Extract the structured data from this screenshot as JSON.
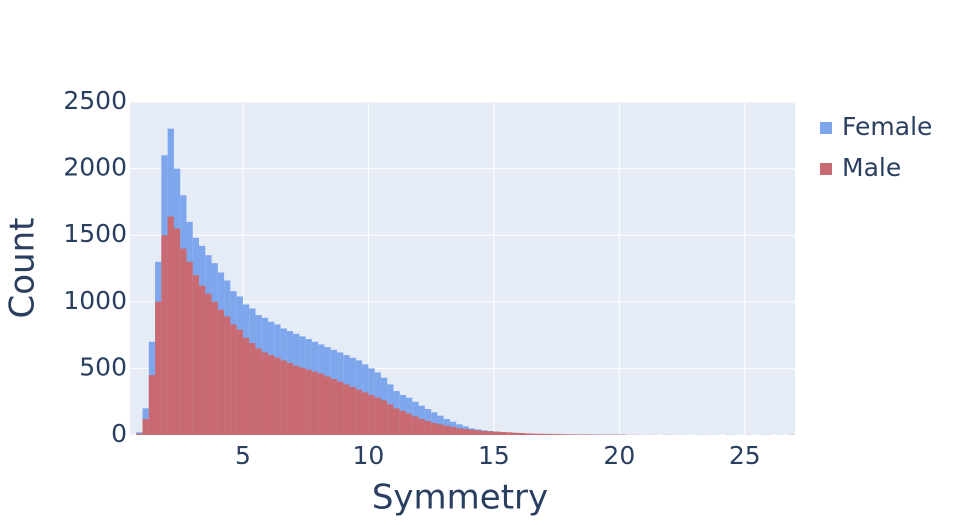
{
  "chart_data": {
    "type": "histogram",
    "barmode": "overlay",
    "xlabel": "Symmetry",
    "ylabel": "Count",
    "bins": [
      0.5,
      0.75,
      1,
      1.25,
      1.5,
      1.75,
      2,
      2.25,
      2.5,
      2.75,
      3,
      3.25,
      3.5,
      3.75,
      4,
      4.25,
      4.5,
      4.75,
      5,
      5.25,
      5.5,
      5.75,
      6,
      6.25,
      6.5,
      6.75,
      7,
      7.25,
      7.5,
      7.75,
      8,
      8.25,
      8.5,
      8.75,
      9,
      9.25,
      9.5,
      9.75,
      10,
      10.25,
      10.5,
      10.75,
      11,
      11.25,
      11.5,
      11.75,
      12,
      12.25,
      12.5,
      12.75,
      13,
      13.25,
      13.5,
      13.75,
      14,
      14.25,
      14.5,
      14.75,
      15,
      15.25,
      15.5,
      15.75,
      16,
      16.25,
      16.5,
      16.75,
      17,
      17.25,
      17.5,
      17.75,
      18,
      18.25,
      18.5,
      18.75,
      19,
      19.25,
      19.5,
      19.75,
      20,
      20.25,
      20.5,
      20.75,
      21,
      21.25,
      21.5,
      21.75,
      22,
      22.25,
      22.5,
      22.75,
      23,
      23.25,
      23.5,
      23.75,
      24,
      24.25,
      24.5,
      24.75,
      25,
      25.25,
      25.5,
      25.75,
      26,
      26.25,
      26.5,
      26.75,
      27
    ],
    "series": [
      {
        "name": "Female",
        "color": "#7ea6ec",
        "values": [
          0,
          20,
          200,
          700,
          1300,
          2100,
          2300,
          2000,
          1800,
          1600,
          1480,
          1420,
          1350,
          1290,
          1220,
          1160,
          1080,
          1040,
          980,
          950,
          900,
          880,
          850,
          830,
          800,
          780,
          760,
          740,
          720,
          700,
          680,
          660,
          640,
          620,
          600,
          580,
          560,
          530,
          500,
          470,
          430,
          380,
          330,
          300,
          280,
          250,
          220,
          195,
          170,
          145,
          120,
          100,
          80,
          65,
          50,
          42,
          35,
          30,
          25,
          20,
          16,
          13,
          12,
          10,
          8,
          7,
          6,
          5,
          5,
          4,
          4,
          3,
          3,
          3,
          2,
          2,
          2,
          2,
          2,
          1,
          1,
          0,
          1,
          1,
          0,
          1,
          1,
          0,
          1,
          0,
          1,
          1,
          0,
          1,
          0,
          1,
          1,
          0,
          1,
          0,
          1,
          1,
          0,
          1,
          0,
          1
        ]
      },
      {
        "name": "Male",
        "color": "#c96a72",
        "values": [
          0,
          10,
          120,
          450,
          1000,
          1500,
          1640,
          1550,
          1400,
          1300,
          1200,
          1120,
          1060,
          1000,
          940,
          890,
          830,
          790,
          730,
          690,
          650,
          620,
          600,
          580,
          560,
          540,
          520,
          505,
          490,
          475,
          460,
          440,
          420,
          400,
          380,
          360,
          340,
          320,
          300,
          280,
          260,
          230,
          200,
          180,
          160,
          140,
          120,
          105,
          90,
          80,
          70,
          60,
          50,
          45,
          40,
          35,
          30,
          27,
          25,
          22,
          20,
          17,
          15,
          12,
          10,
          9,
          8,
          7,
          6,
          5,
          5,
          4,
          4,
          4,
          3,
          3,
          3,
          3,
          3,
          1,
          1,
          1,
          0,
          1,
          0,
          1,
          0,
          1,
          0,
          0,
          1,
          0,
          1,
          0,
          0,
          1,
          0,
          0,
          1,
          0,
          0,
          1,
          0,
          0,
          0,
          1
        ]
      }
    ],
    "xlim": [
      0.5,
      27
    ],
    "ylim": [
      0,
      2500
    ],
    "xticks": [
      5,
      10,
      15,
      20,
      25
    ],
    "yticks": [
      0,
      500,
      1000,
      1500,
      2000,
      2500
    ],
    "grid": true,
    "legend": "right"
  }
}
